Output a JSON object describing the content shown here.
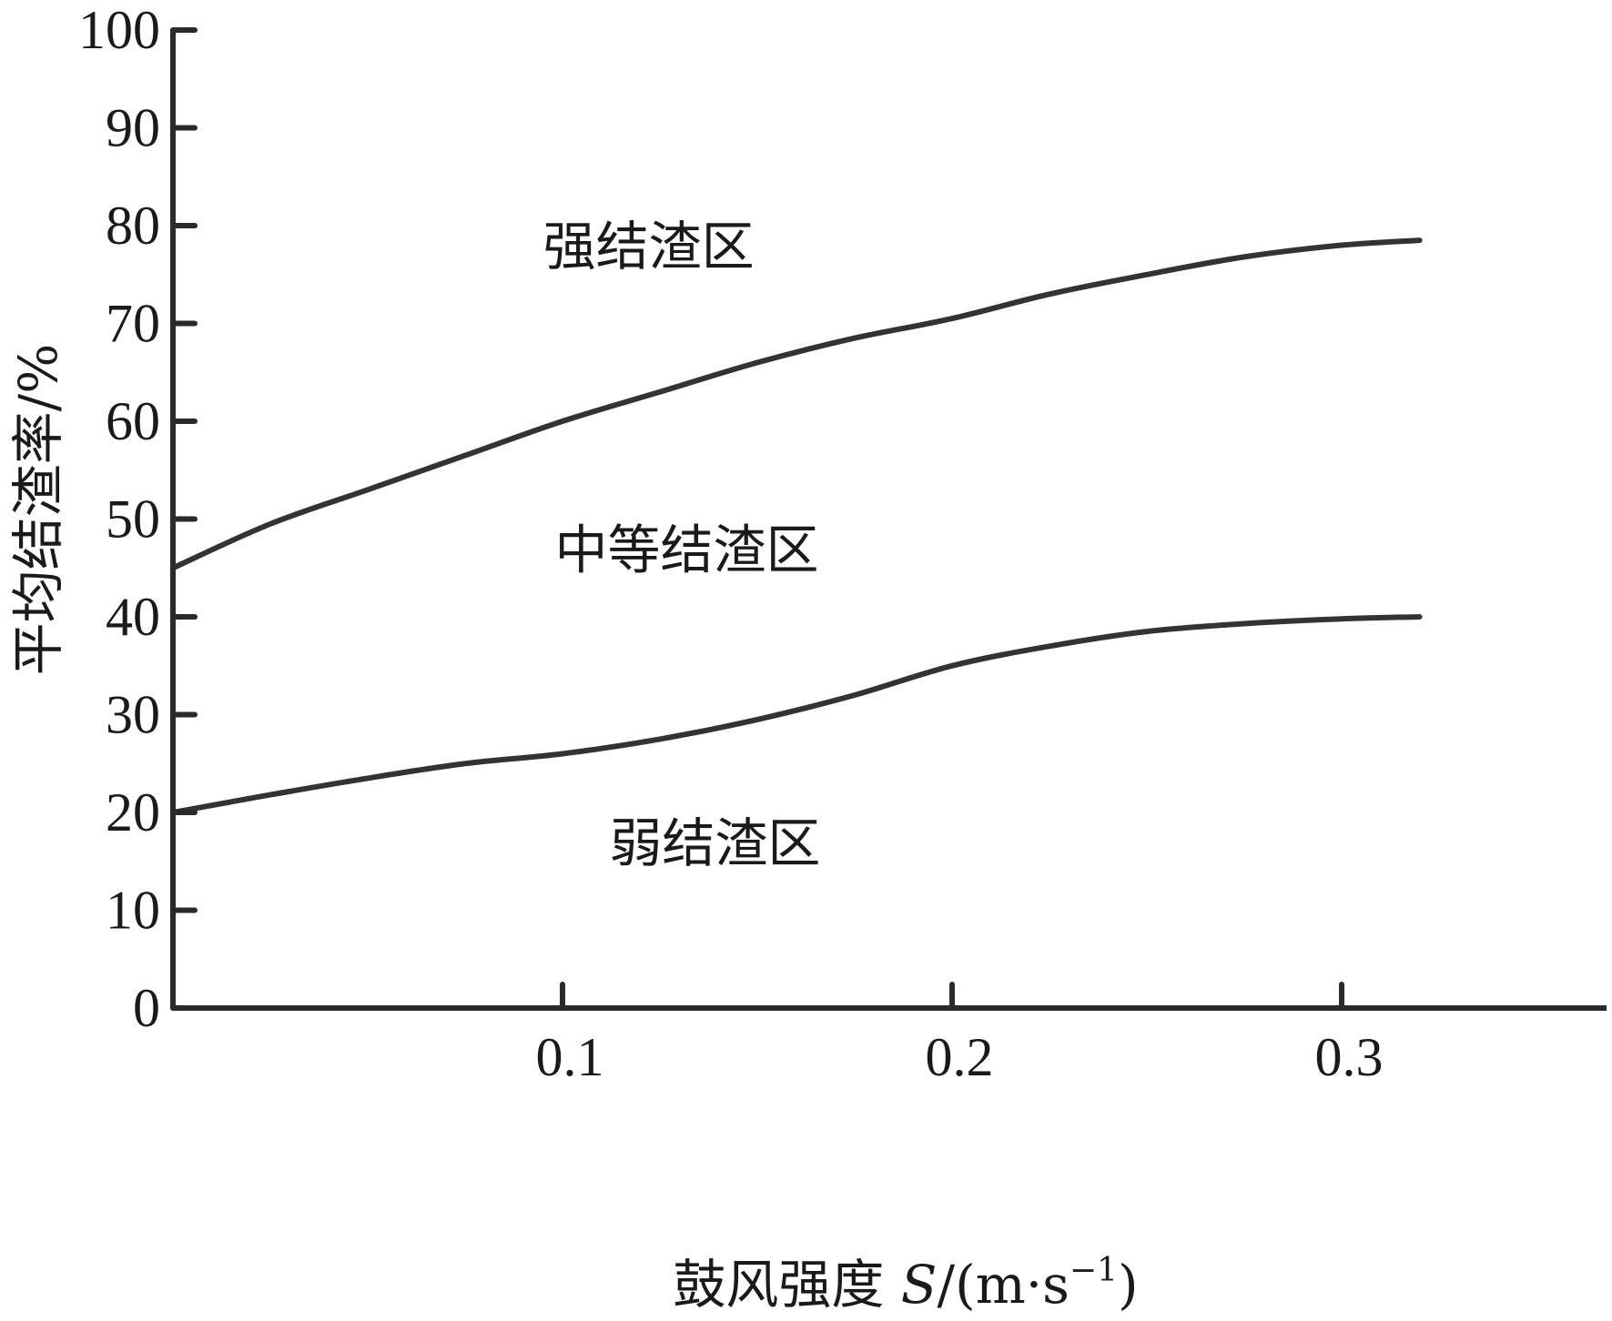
{
  "chart_data": {
    "type": "line",
    "title": "",
    "xlabel": "鼓风强度 S/(m·s⁻¹)",
    "ylabel": "平均结渣率/%",
    "xlabel_parts": {
      "prefix": "鼓风强度 ",
      "var": "S",
      "mid": "/(m·s",
      "sup": "−1",
      "suffix": ")"
    },
    "xlim": [
      0,
      0.32
    ],
    "ylim": [
      0,
      100
    ],
    "x_ticks": [
      0.1,
      0.2,
      0.3
    ],
    "x_tick_labels": [
      "0.1",
      "0.2",
      "0.3"
    ],
    "y_ticks": [
      0,
      10,
      20,
      30,
      40,
      50,
      60,
      70,
      80,
      90,
      100
    ],
    "y_tick_labels": [
      "0",
      "10",
      "20",
      "30",
      "40",
      "50",
      "60",
      "70",
      "80",
      "90",
      "100"
    ],
    "grid": false,
    "series": [
      {
        "x": [
          0,
          0.025,
          0.05,
          0.075,
          0.1,
          0.125,
          0.15,
          0.175,
          0.2,
          0.225,
          0.25,
          0.275,
          0.3,
          0.32
        ],
        "values": [
          45,
          49.5,
          53,
          56.5,
          60,
          63,
          66,
          68.5,
          70.5,
          73,
          75,
          76.8,
          78,
          78.5
        ]
      },
      {
        "x": [
          0,
          0.025,
          0.05,
          0.075,
          0.1,
          0.125,
          0.15,
          0.175,
          0.2,
          0.225,
          0.25,
          0.275,
          0.3,
          0.32
        ],
        "values": [
          20,
          21.8,
          23.5,
          25,
          26,
          27.5,
          29.5,
          32,
          35,
          37,
          38.5,
          39.3,
          39.8,
          40
        ]
      }
    ],
    "annotations": [
      {
        "text": "强结渣区",
        "x": 0.095,
        "y": 76
      },
      {
        "text": "中等结渣区",
        "x": 0.098,
        "y": 45
      },
      {
        "text": "弱结渣区",
        "x": 0.112,
        "y": 15
      }
    ]
  }
}
